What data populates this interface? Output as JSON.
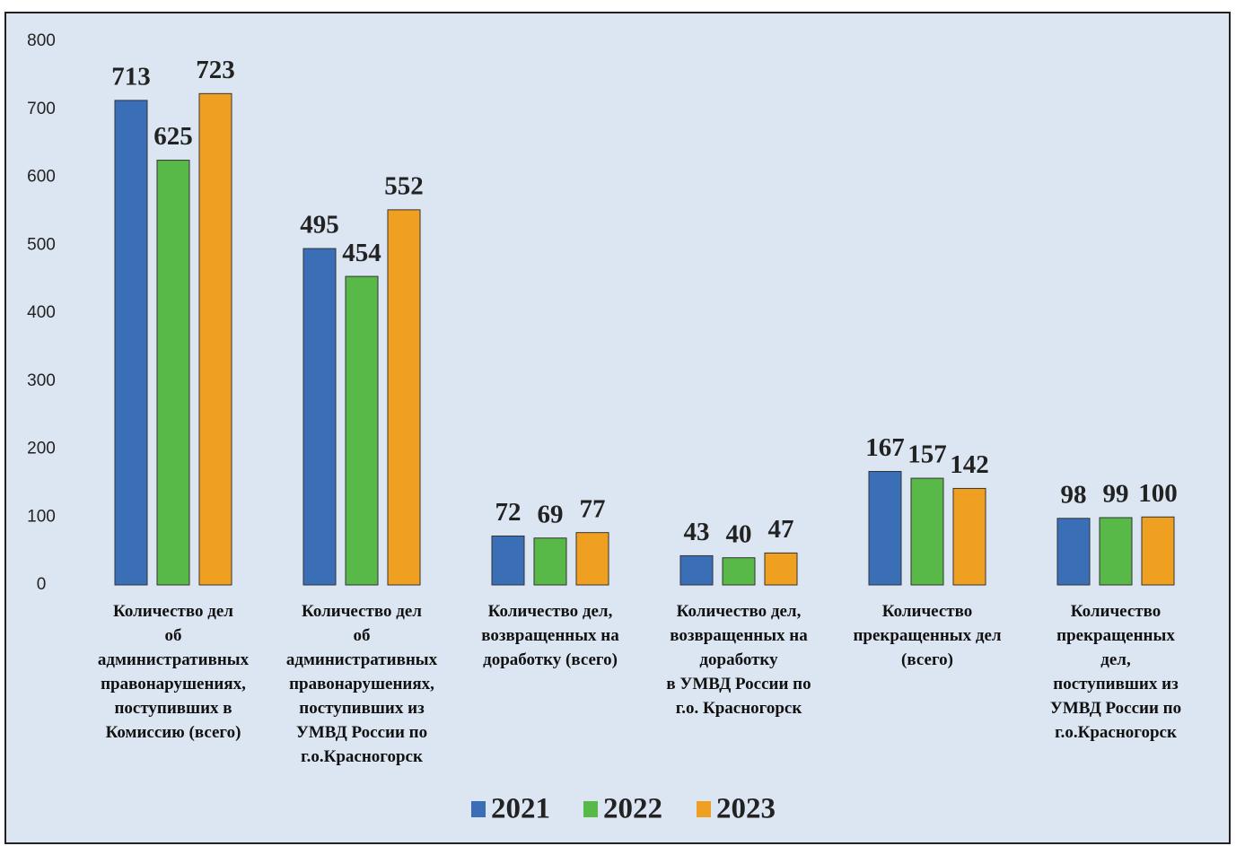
{
  "chart_data": {
    "type": "bar",
    "categories": [
      "Количество дел\nоб\nадминистративных\nправонарушениях,\nпоступивших в\nКомиссию (всего)",
      "Количество дел\nоб\nадминистративных\nправонарушениях,\nпоступивших из\nУМВД России по\nг.о.Красногорск",
      "Количество дел,\nвозвращенных на\nдоработку (всего)",
      "Количество дел,\nвозвращенных на\nдоработку\nв УМВД России по\nг.о. Красногорск",
      "Количество\nпрекращенных дел\n(всего)",
      "Количество\nпрекращенных\nдел,\nпоступивших из\nУМВД России по\nг.о.Красногорск"
    ],
    "series": [
      {
        "name": "2021",
        "color": "#3a6fb8",
        "values": [
          713,
          495,
          72,
          43,
          167,
          98
        ]
      },
      {
        "name": "2022",
        "color": "#58b848",
        "values": [
          625,
          454,
          69,
          40,
          157,
          99
        ]
      },
      {
        "name": "2023",
        "color": "#f0a020",
        "values": [
          723,
          552,
          77,
          47,
          142,
          100
        ]
      }
    ],
    "ylim": [
      0,
      800
    ],
    "yticks": [
      0,
      100,
      200,
      300,
      400,
      500,
      600,
      700,
      800
    ],
    "grid": false,
    "legend": "bottom"
  }
}
